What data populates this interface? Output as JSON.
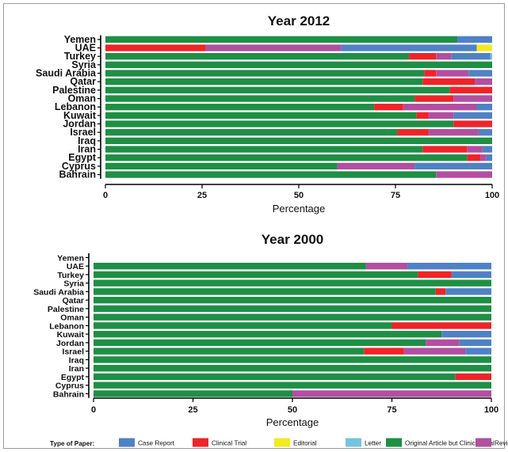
{
  "chart_data": [
    {
      "type": "bar",
      "orientation": "horizontal",
      "stacked": true,
      "title": "Year 2012",
      "xlabel": "Percentage",
      "ylabel": "",
      "xlim": [
        0,
        100
      ],
      "xticks": [
        "0",
        "25",
        "50",
        "75",
        "100"
      ],
      "categories": [
        "Yemen",
        "UAE",
        "Turkey",
        "Syria",
        "Saudi Arabia",
        "Qatar",
        "Palestine",
        "Oman",
        "Lebanon",
        "Kuwait",
        "Jordan",
        "Israel",
        "Iraq",
        "Iran",
        "Egypt",
        "Cyprus",
        "Bahrain"
      ],
      "series": [
        {
          "name": "Original Article but Clinical Trial",
          "values": [
            91,
            0,
            78.5,
            100,
            82.5,
            82,
            89,
            80,
            69.5,
            80.5,
            90,
            75.5,
            100,
            82,
            93.5,
            60,
            85.5
          ]
        },
        {
          "name": "Clinical Trial",
          "values": [
            0,
            26,
            7,
            0,
            3,
            13.5,
            11,
            10,
            7.5,
            3,
            10,
            8,
            0,
            11.5,
            3.5,
            0,
            0
          ]
        },
        {
          "name": "Review",
          "values": [
            0,
            35,
            4,
            0,
            8.5,
            4.5,
            0,
            10,
            19,
            6.5,
            0,
            13,
            0,
            4,
            1.5,
            20,
            14.5
          ]
        },
        {
          "name": "Case Report",
          "values": [
            9,
            35,
            10,
            0,
            6,
            0,
            0,
            0,
            4,
            10,
            0,
            3.5,
            0,
            2.5,
            1.5,
            20,
            0
          ]
        },
        {
          "name": "Letter",
          "values": [
            0,
            0,
            0.5,
            0,
            0,
            0,
            0,
            0,
            0,
            0,
            0,
            0,
            0,
            0,
            0,
            0,
            0
          ]
        },
        {
          "name": "Editorial",
          "values": [
            0,
            4,
            0,
            0,
            0,
            0,
            0,
            0,
            0,
            0,
            0,
            0,
            0,
            0,
            0,
            0,
            0
          ]
        }
      ]
    },
    {
      "type": "bar",
      "orientation": "horizontal",
      "stacked": true,
      "title": "Year 2000",
      "xlabel": "Percentage",
      "ylabel": "",
      "xlim": [
        0,
        100
      ],
      "xticks": [
        "0",
        "25",
        "50",
        "75",
        "100"
      ],
      "categories": [
        "Yemen",
        "UAE",
        "Turkey",
        "Syria",
        "Saudi Arabia",
        "Qatar",
        "Palestine",
        "Oman",
        "Lebanon",
        "Kuwait",
        "Jordan",
        "Israel",
        "Iraq",
        "Iran",
        "Egypt",
        "Cyprus",
        "Bahrain"
      ],
      "series": [
        {
          "name": "Original Article but Clinical Trial",
          "values": [
            0,
            68.5,
            81.5,
            100,
            86,
            100,
            100,
            100,
            75,
            87.5,
            83.5,
            68,
            100,
            100,
            91,
            100,
            50
          ]
        },
        {
          "name": "Clinical Trial",
          "values": [
            0,
            0,
            8.5,
            0,
            2.5,
            0,
            0,
            0,
            25,
            0,
            0,
            10,
            0,
            0,
            9,
            0,
            0
          ]
        },
        {
          "name": "Review",
          "values": [
            0,
            10.5,
            0,
            0,
            0,
            0,
            0,
            0,
            0,
            0,
            8.5,
            15.5,
            0,
            0,
            0,
            0,
            50
          ]
        },
        {
          "name": "Case Report",
          "values": [
            0,
            21,
            10,
            0,
            11.5,
            0,
            0,
            0,
            0,
            12.5,
            8,
            6.5,
            0,
            0,
            0,
            0,
            0
          ]
        },
        {
          "name": "Letter",
          "values": [
            0,
            0,
            0,
            0,
            0,
            0,
            0,
            0,
            0,
            0,
            0,
            0,
            0,
            0,
            0,
            0,
            0
          ]
        },
        {
          "name": "Editorial",
          "values": [
            0,
            0,
            0,
            0,
            0,
            0,
            0,
            0,
            0,
            0,
            0,
            0,
            0,
            0,
            0,
            0,
            0
          ]
        }
      ]
    }
  ],
  "legend": {
    "title": "Type of Paper:",
    "placement": "bottom",
    "items": [
      {
        "label": "Case Report",
        "color": "#4f81c4"
      },
      {
        "label": "Clinical Trial",
        "color": "#ee2428"
      },
      {
        "label": "Editorial",
        "color": "#f2ea22"
      },
      {
        "label": "Letter",
        "color": "#76c3df"
      },
      {
        "label": "Original Article but Clinical Trial",
        "color": "#1e8f45"
      },
      {
        "label": "Review",
        "color": "#b24fa0"
      }
    ]
  },
  "colors": {
    "Original Article but Clinical Trial": "#1e8f45",
    "Clinical Trial": "#ee2428",
    "Review": "#b24fa0",
    "Case Report": "#4f81c4",
    "Letter": "#76c3df",
    "Editorial": "#f2ea22"
  }
}
